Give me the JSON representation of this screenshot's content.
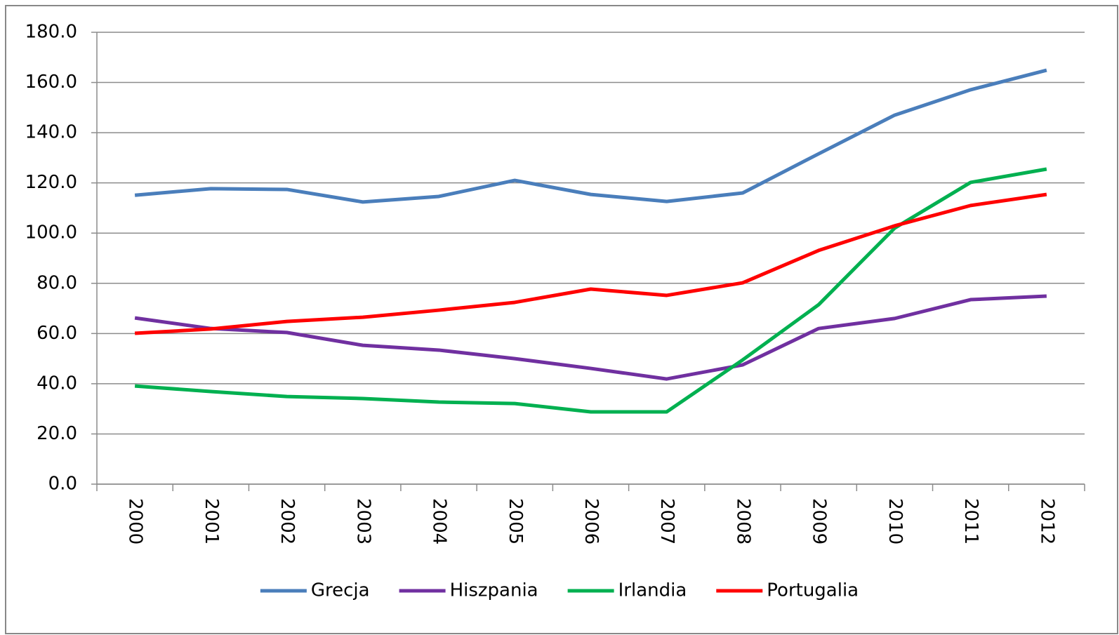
{
  "chart_data": {
    "type": "line",
    "categories": [
      "2000",
      "2001",
      "2002",
      "2003",
      "2004",
      "2005",
      "2006",
      "2007",
      "2008",
      "2009",
      "2010",
      "2011",
      "2012"
    ],
    "series": [
      {
        "name": "Grecja",
        "color": "#4a7ebb",
        "values": [
          115.1,
          117.7,
          117.4,
          112.4,
          114.6,
          121.0,
          115.4,
          112.6,
          116.0,
          131.6,
          147.0,
          157.1,
          164.9
        ]
      },
      {
        "name": "Hiszpania",
        "color": "#7030a0",
        "values": [
          66.2,
          62.0,
          60.4,
          55.3,
          53.4,
          50.0,
          46.1,
          41.9,
          47.5,
          62.0,
          66.0,
          73.5,
          74.9
        ]
      },
      {
        "name": "Irlandia",
        "color": "#00b050",
        "values": [
          39.1,
          36.9,
          34.9,
          34.1,
          32.7,
          32.1,
          28.8,
          28.8,
          49.5,
          71.5,
          102.0,
          120.2,
          125.5
        ]
      },
      {
        "name": "Portugalia",
        "color": "#ff0000",
        "values": [
          60.1,
          61.8,
          64.8,
          66.5,
          69.3,
          72.4,
          77.7,
          75.2,
          80.2,
          93.1,
          102.9,
          111.0,
          115.4
        ]
      }
    ],
    "ylim": [
      0,
      180
    ],
    "yticks": [
      {
        "value": 0,
        "label": "0.0"
      },
      {
        "value": 20,
        "label": "20.0"
      },
      {
        "value": 40,
        "label": "40.0"
      },
      {
        "value": 60,
        "label": "60.0"
      },
      {
        "value": 80,
        "label": "80.0"
      },
      {
        "value": 100,
        "label": "100.0"
      },
      {
        "value": 120,
        "label": "120.0"
      },
      {
        "value": 140,
        "label": "140.0"
      },
      {
        "value": 160,
        "label": "160.0"
      },
      {
        "value": 180,
        "label": "180.0"
      }
    ],
    "grid": true,
    "legend": "bottom"
  }
}
